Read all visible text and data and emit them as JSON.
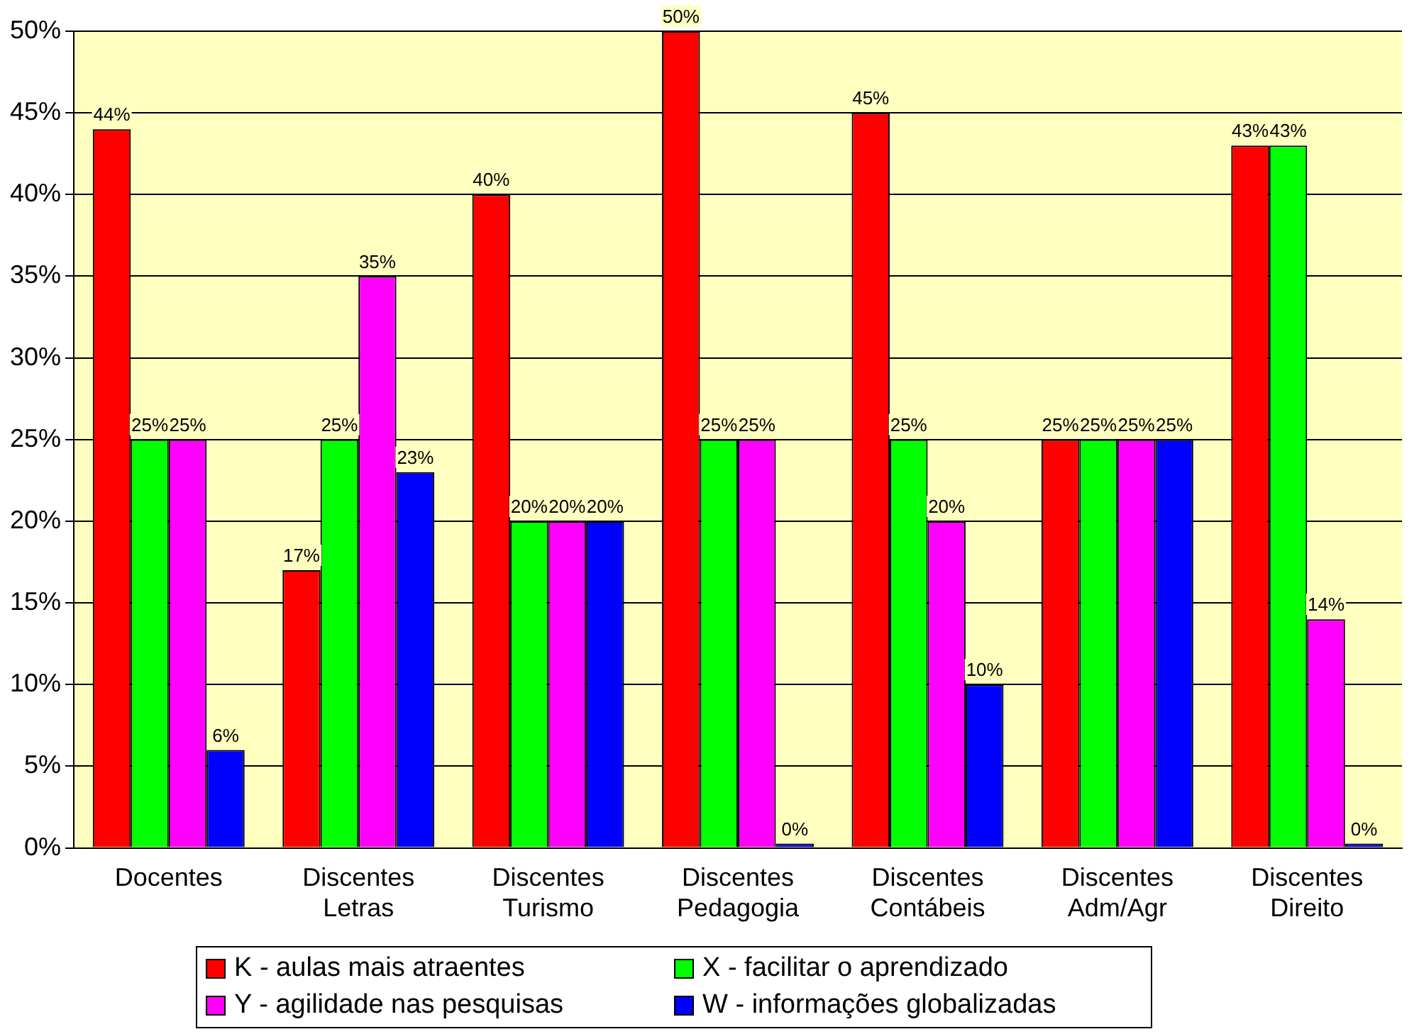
{
  "chart_data": {
    "type": "bar",
    "categories": [
      "Docentes",
      "Discentes Letras",
      "Discentes Turismo",
      "Discentes Pedagogia",
      "Discentes Contábeis",
      "Discentes Adm/Agr",
      "Discentes Direito"
    ],
    "series": [
      {
        "name": "K - aulas mais atraentes",
        "color": "#ff0000",
        "values": [
          44,
          17,
          40,
          50,
          45,
          25,
          43
        ],
        "value_labels": [
          "44%",
          "17%",
          "40%",
          "50%",
          "45%",
          "25%",
          "43%"
        ]
      },
      {
        "name": "X - facilitar o aprendizado",
        "color": "#00ff00",
        "values": [
          25,
          25,
          20,
          25,
          25,
          25,
          43
        ],
        "value_labels": [
          "25%",
          "25%",
          "20%",
          "25%",
          "25%",
          "25%",
          "43%"
        ]
      },
      {
        "name": "Y - agilidade nas pesquisas",
        "color": "#ff00ff",
        "values": [
          25,
          35,
          20,
          25,
          20,
          25,
          14
        ],
        "value_labels": [
          "25%",
          "35%",
          "20%",
          "25%",
          "20%",
          "25%",
          "14%"
        ]
      },
      {
        "name": "W - informações globalizadas",
        "color": "#0000ff",
        "values": [
          6,
          23,
          20,
          0,
          10,
          25,
          0
        ],
        "value_labels": [
          "6%",
          "23%",
          "20%",
          "0%",
          "10%",
          "25%",
          "0%"
        ]
      }
    ],
    "ylim": [
      0,
      50
    ],
    "yticks": [
      {
        "value": 0,
        "label": "0%"
      },
      {
        "value": 5,
        "label": "5%"
      },
      {
        "value": 10,
        "label": "10%"
      },
      {
        "value": 15,
        "label": "15%"
      },
      {
        "value": 20,
        "label": "20%"
      },
      {
        "value": 25,
        "label": "25%"
      },
      {
        "value": 30,
        "label": "30%"
      },
      {
        "value": 35,
        "label": "35%"
      },
      {
        "value": 40,
        "label": "40%"
      },
      {
        "value": 45,
        "label": "45%"
      },
      {
        "value": 50,
        "label": "50%"
      }
    ],
    "grid": "y",
    "legend": "bottom"
  }
}
